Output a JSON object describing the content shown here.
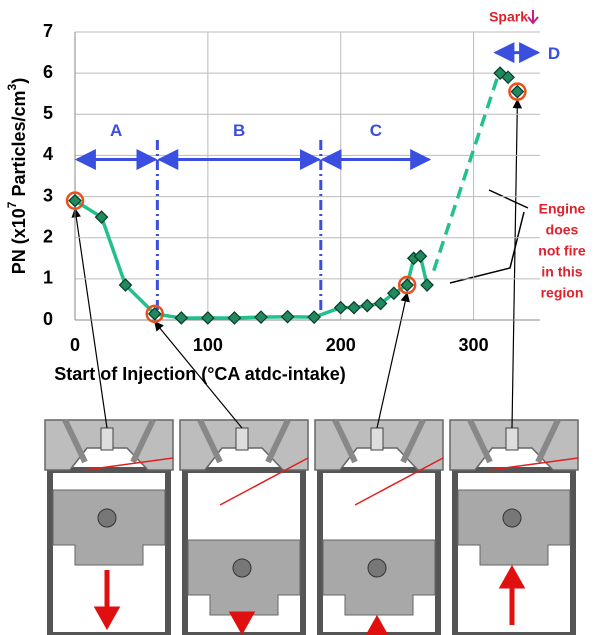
{
  "chart_data": {
    "type": "line",
    "ylabel_parts": [
      "PN (x10",
      "7",
      " Particles/cm",
      "3",
      ")"
    ],
    "xlabel": "Start of Injection (°CA atdc-intake)",
    "xlim": [
      0,
      350
    ],
    "ylim": [
      0,
      7
    ],
    "xticks": [
      0,
      100,
      200,
      300
    ],
    "yticks": [
      0,
      1,
      2,
      3,
      4,
      5,
      6,
      7
    ],
    "grid": true,
    "series": [
      {
        "x": [
          0,
          20,
          38,
          60,
          80,
          100,
          120,
          140,
          160,
          180,
          200,
          210,
          220,
          230,
          240,
          250,
          255,
          260,
          265
        ],
        "values": [
          2.9,
          2.5,
          0.85,
          0.15,
          0.05,
          0.05,
          0.05,
          0.07,
          0.08,
          0.07,
          0.3,
          0.3,
          0.35,
          0.4,
          0.65,
          0.85,
          1.5,
          1.55,
          0.85
        ],
        "color": "#22c08c",
        "dash": false,
        "markers": true,
        "line": true
      },
      {
        "x": [
          270,
          319
        ],
        "values": [
          1.2,
          6.0
        ],
        "color": "#22c08c",
        "dash": true,
        "markers": false,
        "line": true
      },
      {
        "x": [
          320,
          326,
          333
        ],
        "values": [
          6.0,
          5.9,
          5.55
        ],
        "color": "#22c08c",
        "dash": false,
        "markers": true,
        "line": false
      }
    ],
    "highlights": {
      "x": [
        0,
        60,
        250,
        333
      ],
      "values": [
        2.9,
        0.15,
        0.85,
        5.55
      ],
      "color": "#e8501e"
    },
    "phase_lines": [
      62,
      185
    ],
    "regions": [
      {
        "label": "A",
        "from": 0,
        "to": 62,
        "y": 3.9
      },
      {
        "label": "B",
        "from": 62,
        "to": 185,
        "y": 3.9
      },
      {
        "label": "C",
        "from": 185,
        "to": 268,
        "y": 3.9
      },
      {
        "label": "D",
        "from": 315,
        "to": 350,
        "y": 6.5
      }
    ],
    "spark": "Spark",
    "engine_note": [
      "Engine",
      "does",
      "not fire",
      "in this",
      "region"
    ]
  }
}
